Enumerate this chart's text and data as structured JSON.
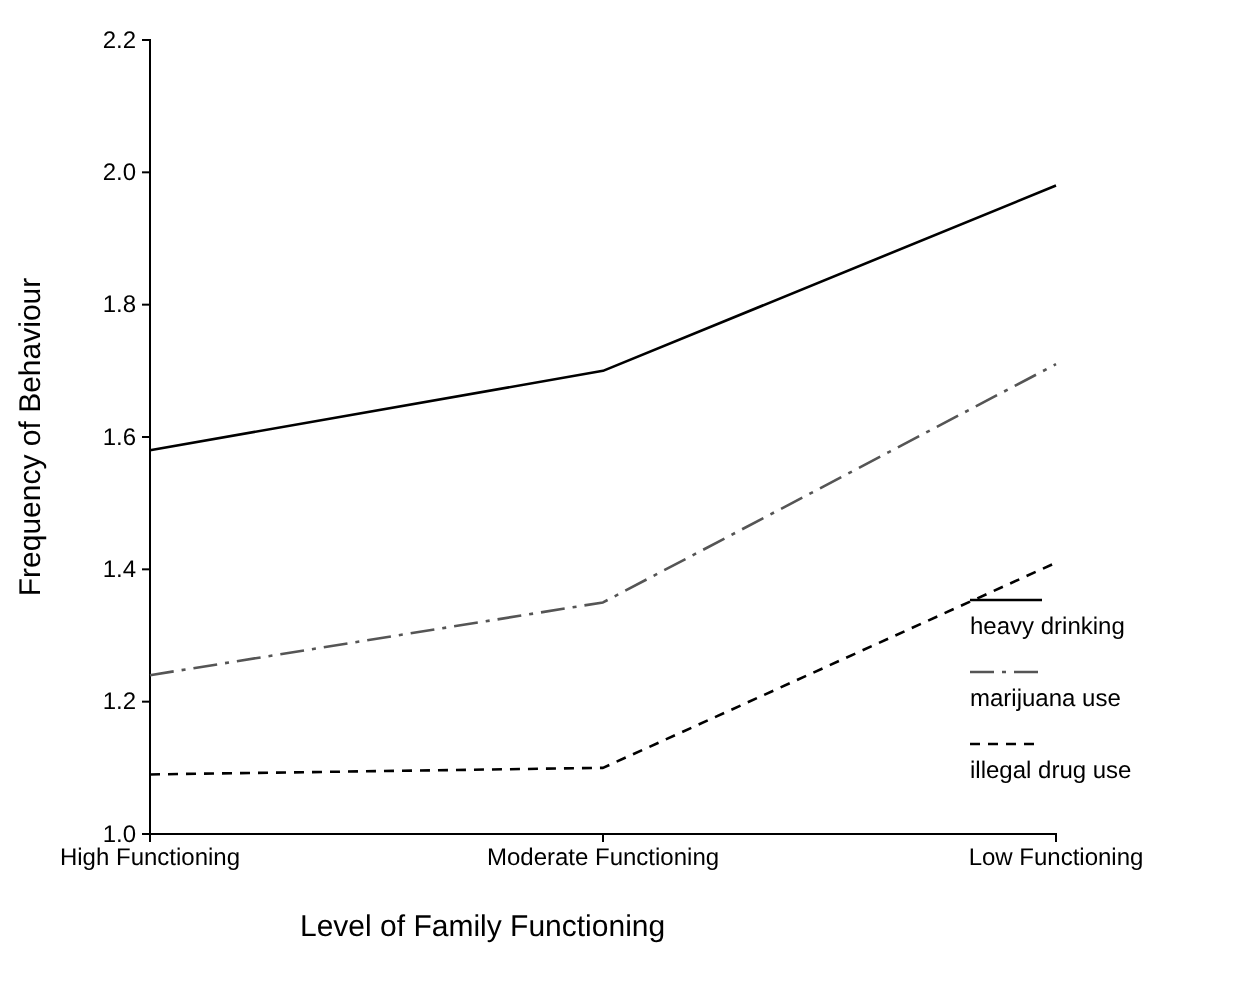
{
  "chart_data": {
    "type": "line",
    "xlabel": "Level of Family Functioning",
    "ylabel": "Frequency of Behaviour",
    "categories": [
      "High Functioning",
      "Moderate Functioning",
      "Low Functioning"
    ],
    "series": [
      {
        "name": "heavy drinking",
        "color": "#000000",
        "values": [
          1.58,
          1.7,
          1.98
        ],
        "line_style": "solid"
      },
      {
        "name": "marijuana use",
        "color": "#555555",
        "values": [
          1.24,
          1.35,
          1.71
        ],
        "line_style": "dashdot"
      },
      {
        "name": "illegal drug use",
        "color": "#000000",
        "values": [
          1.09,
          1.1,
          1.41
        ],
        "line_style": "dashed"
      }
    ],
    "ylim": [
      1.0,
      2.2
    ],
    "yticks": [
      {
        "value": 1.0,
        "label": "1.0"
      },
      {
        "value": 1.2,
        "label": "1.2"
      },
      {
        "value": 1.4,
        "label": "1.4"
      },
      {
        "value": 1.6,
        "label": "1.6"
      },
      {
        "value": 1.8,
        "label": "1.8"
      },
      {
        "value": 2.0,
        "label": "2.0"
      },
      {
        "value": 2.2,
        "label": "2.2"
      }
    ],
    "legend": "bottom right",
    "grid": false,
    "marker": "none"
  }
}
